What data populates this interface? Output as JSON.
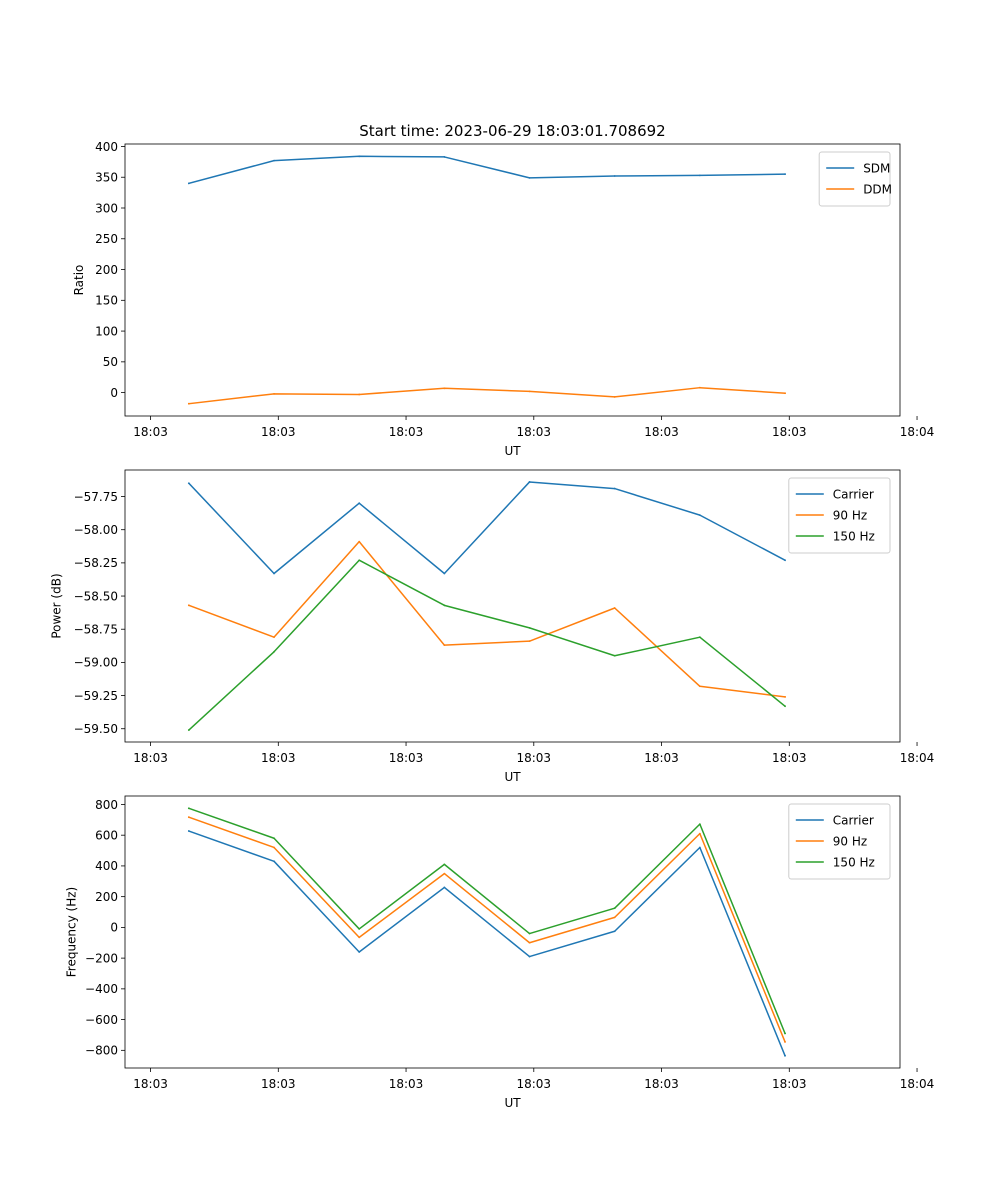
{
  "figure_title": "Start time: 2023-06-29 18:03:01.708692",
  "colors": {
    "blue": "#1f77b4",
    "orange": "#ff7f0e",
    "green": "#2ca02c"
  },
  "chart_data": [
    {
      "type": "line",
      "title": "Start time: 2023-06-29 18:03:01.708692",
      "xlabel": "UT",
      "ylabel": "Ratio",
      "x": [
        1,
        2,
        3,
        4,
        5,
        6,
        7,
        8
      ],
      "xlim": [
        0.25,
        9.35
      ],
      "xticks": [
        0.55,
        2.05,
        3.55,
        5.05,
        6.55,
        8.05,
        9.55
      ],
      "xticklabels": [
        "18:03",
        "18:03",
        "18:03",
        "18:03",
        "18:03",
        "18:03",
        "18:04"
      ],
      "ylim": [
        -38,
        404
      ],
      "yticks": [
        0,
        50,
        100,
        150,
        200,
        250,
        300,
        350,
        400
      ],
      "yticklabels": [
        "0",
        "50",
        "100",
        "150",
        "200",
        "250",
        "300",
        "350",
        "400"
      ],
      "grid": false,
      "legend": "upper right",
      "series": [
        {
          "name": "SDM",
          "color": "#1f77b4",
          "values": [
            340,
            377,
            384,
            383,
            349,
            352,
            353,
            355
          ]
        },
        {
          "name": "DDM",
          "color": "#ff7f0e",
          "values": [
            -18,
            -2,
            -3,
            7,
            2,
            -7,
            8,
            -1
          ]
        }
      ]
    },
    {
      "type": "line",
      "title": "",
      "xlabel": "UT",
      "ylabel": "Power (dB)",
      "x": [
        1,
        2,
        3,
        4,
        5,
        6,
        7,
        8
      ],
      "xlim": [
        0.25,
        9.35
      ],
      "xticks": [
        0.55,
        2.05,
        3.55,
        5.05,
        6.55,
        8.05,
        9.55
      ],
      "xticklabels": [
        "18:03",
        "18:03",
        "18:03",
        "18:03",
        "18:03",
        "18:03",
        "18:04"
      ],
      "ylim": [
        -59.6,
        -57.55
      ],
      "yticks": [
        -59.5,
        -59.25,
        -59.0,
        -58.75,
        -58.5,
        -58.25,
        -58.0,
        -57.75
      ],
      "yticklabels": [
        "−59.50",
        "−59.25",
        "−59.00",
        "−58.75",
        "−58.50",
        "−58.25",
        "−58.00",
        "−57.75"
      ],
      "grid": false,
      "legend": "upper right",
      "series": [
        {
          "name": "Carrier",
          "color": "#1f77b4",
          "values": [
            -57.65,
            -58.33,
            -57.8,
            -58.33,
            -57.64,
            -57.69,
            -57.89,
            -58.23
          ]
        },
        {
          "name": "90 Hz",
          "color": "#ff7f0e",
          "values": [
            -58.57,
            -58.81,
            -58.09,
            -58.87,
            -58.84,
            -58.59,
            -59.18,
            -59.26
          ]
        },
        {
          "name": "150 Hz",
          "color": "#2ca02c",
          "values": [
            -59.51,
            -58.92,
            -58.23,
            -58.57,
            -58.74,
            -58.95,
            -58.81,
            -59.33
          ]
        }
      ]
    },
    {
      "type": "line",
      "title": "",
      "xlabel": "UT",
      "ylabel": "Frequency (Hz)",
      "x": [
        1,
        2,
        3,
        4,
        5,
        6,
        7,
        8
      ],
      "xlim": [
        0.25,
        9.35
      ],
      "xticks": [
        0.55,
        2.05,
        3.55,
        5.05,
        6.55,
        8.05,
        9.55
      ],
      "xticklabels": [
        "18:03",
        "18:03",
        "18:03",
        "18:03",
        "18:03",
        "18:03",
        "18:04"
      ],
      "ylim": [
        -915,
        855
      ],
      "yticks": [
        -800,
        -600,
        -400,
        -200,
        0,
        200,
        400,
        600,
        800
      ],
      "yticklabels": [
        "−800",
        "−600",
        "−400",
        "−200",
        "0",
        "200",
        "400",
        "600",
        "800"
      ],
      "grid": false,
      "legend": "upper right",
      "series": [
        {
          "name": "Carrier",
          "color": "#1f77b4",
          "values": [
            627,
            430,
            -160,
            260,
            -190,
            -25,
            520,
            -835
          ]
        },
        {
          "name": "90 Hz",
          "color": "#ff7f0e",
          "values": [
            717,
            520,
            -65,
            350,
            -100,
            65,
            610,
            -745
          ]
        },
        {
          "name": "150 Hz",
          "color": "#2ca02c",
          "values": [
            775,
            580,
            -10,
            410,
            -40,
            125,
            672,
            -690
          ]
        }
      ]
    }
  ]
}
